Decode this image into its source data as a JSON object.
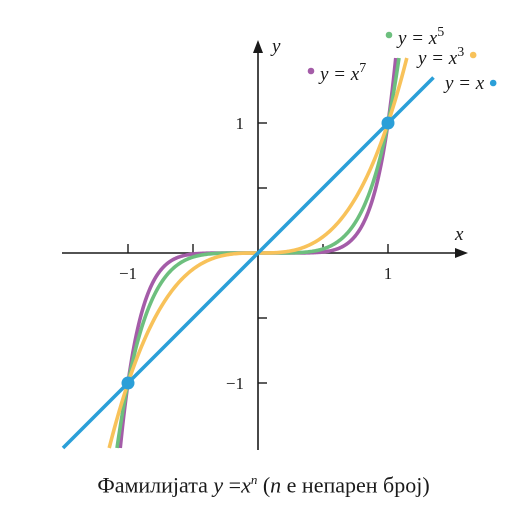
{
  "chart_data": {
    "type": "line",
    "title": "",
    "xlabel": "x",
    "ylabel": "y",
    "xlim": [
      -1.5,
      1.6
    ],
    "ylim": [
      -1.5,
      1.6
    ],
    "x_ticks": [
      -1,
      -0.5,
      0.5,
      1
    ],
    "y_ticks": [
      -1,
      -0.5,
      0.5,
      1
    ],
    "x_tick_labels": [
      {
        "value": -1,
        "label": "−1"
      },
      {
        "value": 1,
        "label": "1"
      }
    ],
    "y_tick_labels": [
      {
        "value": -1,
        "label": "−1"
      },
      {
        "value": 1,
        "label": "1"
      }
    ],
    "series": [
      {
        "name": "y = x",
        "label_base": "y = x",
        "label_sup": "",
        "exponent": 1,
        "color": "#2b9fd8"
      },
      {
        "name": "y = x3",
        "label_base": "y = x",
        "label_sup": "3",
        "exponent": 3,
        "color": "#f8c25a"
      },
      {
        "name": "y = x5",
        "label_base": "y = x",
        "label_sup": "5",
        "exponent": 5,
        "color": "#6dbf7e"
      },
      {
        "name": "y = x7",
        "label_base": "y = x",
        "label_sup": "7",
        "exponent": 7,
        "color": "#a45ca8"
      }
    ],
    "highlight_points": [
      {
        "x": 1,
        "y": 1,
        "color": "#2b9fd8"
      },
      {
        "x": -1,
        "y": -1,
        "color": "#2b9fd8"
      }
    ]
  },
  "caption": {
    "prefix": "Фамилијата ",
    "var_y": "y",
    "equals": " =",
    "var_x": "x",
    "sup_n": "n",
    "open_paren": " (",
    "var_n": "n",
    "rest": " е непарен број)"
  }
}
